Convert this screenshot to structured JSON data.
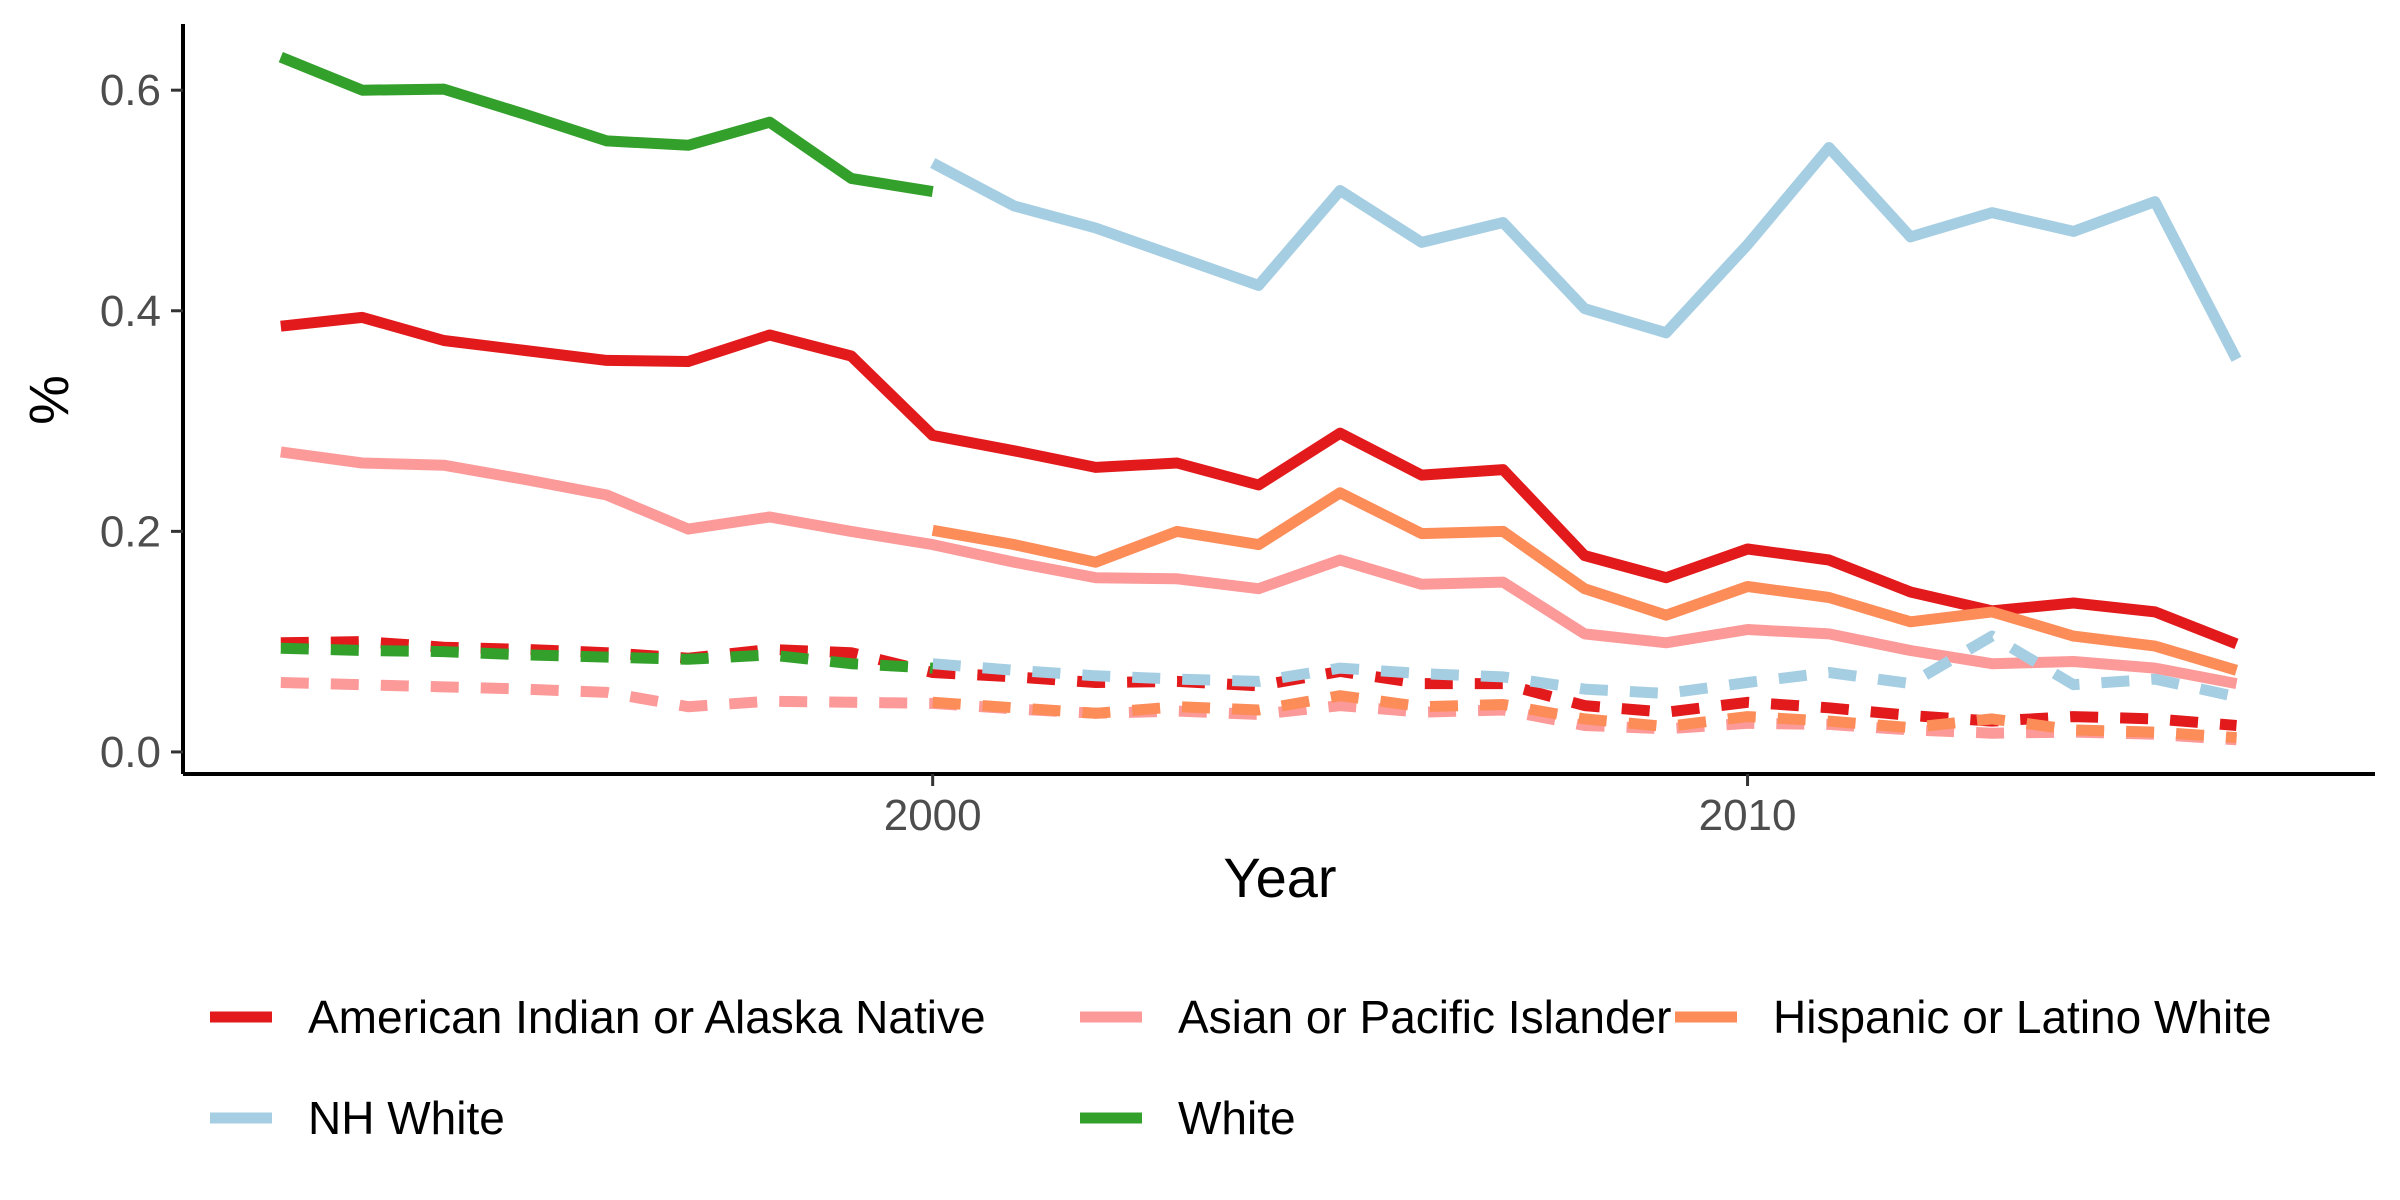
{
  "chart_data": {
    "type": "line",
    "title": "",
    "xlabel": "Year",
    "ylabel": "%",
    "xlim": [
      1990.8,
      2017.7
    ],
    "ylim": [
      -0.02,
      0.66
    ],
    "x_ticks": [
      {
        "value": 2000,
        "label": "2000"
      },
      {
        "value": 2010,
        "label": "2010"
      }
    ],
    "y_ticks": [
      {
        "value": 0.0,
        "label": "0.0"
      },
      {
        "value": 0.2,
        "label": "0.2"
      },
      {
        "value": 0.4,
        "label": "0.4"
      },
      {
        "value": 0.6,
        "label": "0.6"
      }
    ],
    "grid": false,
    "legend_position": "bottom",
    "line_types": [
      "solid",
      "dashed"
    ],
    "series": [
      {
        "name": "American Indian or Alaska Native",
        "color": "#e31a1c",
        "dash": "solid",
        "x": [
          1992,
          1993,
          1994,
          1995,
          1996,
          1997,
          1998,
          1999,
          2000,
          2001,
          2002,
          2003,
          2004,
          2005,
          2006,
          2007,
          2008,
          2009,
          2010,
          2011,
          2012,
          2013,
          2014,
          2015,
          2016
        ],
        "y": [
          0.386,
          0.394,
          0.373,
          0.364,
          0.355,
          0.354,
          0.378,
          0.359,
          0.287,
          0.273,
          0.258,
          0.262,
          0.242,
          0.289,
          0.251,
          0.256,
          0.178,
          0.158,
          0.184,
          0.174,
          0.145,
          0.128,
          0.135,
          0.127,
          0.098
        ]
      },
      {
        "name": "American Indian or Alaska Native",
        "color": "#e31a1c",
        "dash": "dashed",
        "x": [
          1992,
          1993,
          1994,
          1995,
          1996,
          1997,
          1998,
          1999,
          2000,
          2001,
          2002,
          2003,
          2004,
          2005,
          2006,
          2007,
          2008,
          2009,
          2010,
          2011,
          2012,
          2013,
          2014,
          2015,
          2016
        ],
        "y": [
          0.099,
          0.1,
          0.095,
          0.093,
          0.09,
          0.085,
          0.093,
          0.09,
          0.072,
          0.068,
          0.063,
          0.064,
          0.06,
          0.073,
          0.062,
          0.062,
          0.042,
          0.036,
          0.045,
          0.04,
          0.033,
          0.028,
          0.032,
          0.03,
          0.024
        ]
      },
      {
        "name": "Asian or Pacific Islander",
        "color": "#fb9a99",
        "dash": "solid",
        "x": [
          1992,
          1993,
          1994,
          1995,
          1996,
          1997,
          1998,
          1999,
          2000,
          2001,
          2002,
          2003,
          2004,
          2005,
          2006,
          2007,
          2008,
          2009,
          2010,
          2011,
          2012,
          2013,
          2014,
          2015,
          2016
        ],
        "y": [
          0.272,
          0.262,
          0.26,
          0.247,
          0.233,
          0.202,
          0.213,
          0.2,
          0.188,
          0.172,
          0.158,
          0.157,
          0.148,
          0.174,
          0.152,
          0.154,
          0.107,
          0.099,
          0.111,
          0.107,
          0.092,
          0.08,
          0.082,
          0.076,
          0.062
        ]
      },
      {
        "name": "Asian or Pacific Islander",
        "color": "#fb9a99",
        "dash": "dashed",
        "x": [
          1992,
          1993,
          1994,
          1995,
          1996,
          1997,
          1998,
          1999,
          2000,
          2001,
          2002,
          2003,
          2004,
          2005,
          2006,
          2007,
          2008,
          2009,
          2010,
          2011,
          2012,
          2013,
          2014,
          2015,
          2016
        ],
        "y": [
          0.063,
          0.061,
          0.059,
          0.057,
          0.054,
          0.041,
          0.046,
          0.045,
          0.044,
          0.039,
          0.035,
          0.037,
          0.034,
          0.042,
          0.036,
          0.038,
          0.024,
          0.021,
          0.026,
          0.025,
          0.02,
          0.017,
          0.018,
          0.016,
          0.011
        ]
      },
      {
        "name": "Hispanic or Latino White",
        "color": "#fc8d59",
        "dash": "solid",
        "x": [
          2000,
          2001,
          2002,
          2003,
          2004,
          2005,
          2006,
          2007,
          2008,
          2009,
          2010,
          2011,
          2012,
          2013,
          2014,
          2015,
          2016
        ],
        "y": [
          0.201,
          0.188,
          0.172,
          0.2,
          0.188,
          0.235,
          0.198,
          0.2,
          0.148,
          0.124,
          0.15,
          0.14,
          0.118,
          0.127,
          0.105,
          0.096,
          0.074
        ]
      },
      {
        "name": "Hispanic or Latino White",
        "color": "#fc8d59",
        "dash": "dashed",
        "x": [
          2000,
          2001,
          2002,
          2003,
          2004,
          2005,
          2006,
          2007,
          2008,
          2009,
          2010,
          2011,
          2012,
          2013,
          2014,
          2015,
          2016
        ],
        "y": [
          0.045,
          0.04,
          0.035,
          0.041,
          0.038,
          0.051,
          0.041,
          0.043,
          0.03,
          0.023,
          0.032,
          0.028,
          0.022,
          0.03,
          0.02,
          0.018,
          0.013
        ]
      },
      {
        "name": "NH White",
        "color": "#a6cee3",
        "dash": "solid",
        "x": [
          2000,
          2001,
          2002,
          2003,
          2004,
          2005,
          2006,
          2007,
          2008,
          2009,
          2010,
          2011,
          2012,
          2013,
          2014,
          2015,
          2016
        ],
        "y": [
          0.534,
          0.495,
          0.475,
          0.449,
          0.423,
          0.509,
          0.462,
          0.48,
          0.402,
          0.38,
          0.46,
          0.548,
          0.467,
          0.489,
          0.472,
          0.499,
          0.356
        ]
      },
      {
        "name": "NH White",
        "color": "#a6cee3",
        "dash": "dashed",
        "x": [
          2000,
          2001,
          2002,
          2003,
          2004,
          2005,
          2006,
          2007,
          2008,
          2009,
          2010,
          2011,
          2012,
          2013,
          2014,
          2015,
          2016
        ],
        "y": [
          0.08,
          0.074,
          0.069,
          0.066,
          0.064,
          0.076,
          0.071,
          0.068,
          0.057,
          0.053,
          0.063,
          0.072,
          0.062,
          0.105,
          0.061,
          0.066,
          0.05
        ]
      },
      {
        "name": "White",
        "color": "#33a02c",
        "dash": "solid",
        "x": [
          1992,
          1993,
          1994,
          1995,
          1996,
          1997,
          1998,
          1999,
          2000
        ],
        "y": [
          0.63,
          0.6,
          0.601,
          0.578,
          0.554,
          0.55,
          0.571,
          0.52,
          0.508
        ]
      },
      {
        "name": "White",
        "color": "#33a02c",
        "dash": "dashed",
        "x": [
          1992,
          1993,
          1994,
          1995,
          1996,
          1997,
          1998,
          1999,
          2000
        ],
        "y": [
          0.094,
          0.092,
          0.091,
          0.088,
          0.086,
          0.084,
          0.088,
          0.08,
          0.076
        ]
      }
    ],
    "legend": [
      {
        "label": "American Indian or Alaska Native",
        "color": "#e31a1c"
      },
      {
        "label": "Asian or Pacific Islander",
        "color": "#fb9a99"
      },
      {
        "label": "Hispanic or Latino White",
        "color": "#fc8d59"
      },
      {
        "label": "NH White",
        "color": "#a6cee3"
      },
      {
        "label": "White",
        "color": "#33a02c"
      }
    ]
  }
}
